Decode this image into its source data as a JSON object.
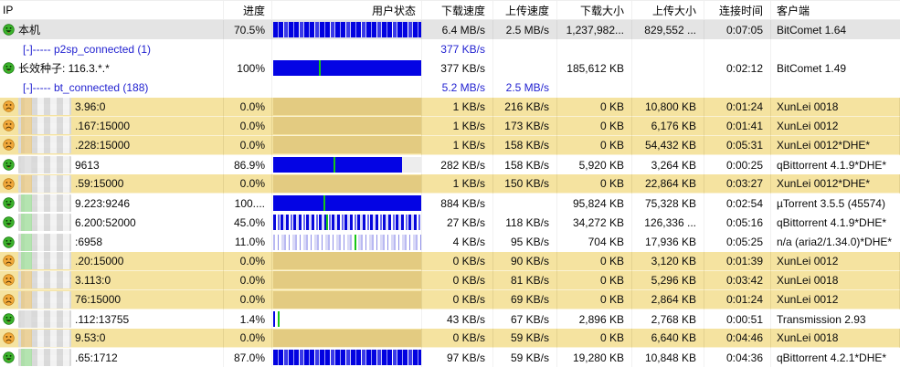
{
  "table": {
    "columns": [
      {
        "id": "ip",
        "label": "IP"
      },
      {
        "id": "progress",
        "label": "进度"
      },
      {
        "id": "status",
        "label": "用户状态"
      },
      {
        "id": "dl_speed",
        "label": "下载速度"
      },
      {
        "id": "ul_speed",
        "label": "上传速度",
        "sorted": "desc"
      },
      {
        "id": "dl_size",
        "label": "下载大小"
      },
      {
        "id": "ul_size",
        "label": "上传大小"
      },
      {
        "id": "conn_time",
        "label": "连接时间"
      },
      {
        "id": "client",
        "label": "客户端"
      }
    ],
    "rows": [
      {
        "kind": "local",
        "bg": "selected",
        "icon": "happy",
        "ip": "本机",
        "progress": "70.5%",
        "bar": {
          "style": "stripes",
          "density": "dense",
          "fill": 100
        },
        "dl_speed": "6.4 MB/s",
        "ul_speed": "2.5 MB/s",
        "dl_size": "1,237,982...",
        "ul_size": "829,552 ...",
        "conn_time": "0:07:05",
        "client": "BitComet 1.64"
      },
      {
        "kind": "group",
        "bg": "white",
        "ip": "[-]----- p2sp_connected (1)",
        "progress": "",
        "dl_speed": "377 KB/s",
        "ul_speed": "",
        "dl_size": "",
        "ul_size": "",
        "conn_time": "",
        "client": ""
      },
      {
        "kind": "peer",
        "bg": "white",
        "icon": "happy",
        "ip": "长效种子: 116.3.*.*",
        "progress": "100%",
        "bar": {
          "style": "solid",
          "fill": 100,
          "marker": 31
        },
        "dl_speed": "377 KB/s",
        "ul_speed": "",
        "dl_size": "185,612 KB",
        "ul_size": "",
        "conn_time": "0:02:12",
        "client": "BitComet 1.49"
      },
      {
        "kind": "group",
        "bg": "white",
        "ip": "[-]----- bt_connected (188)",
        "progress": "",
        "dl_speed": "5.2 MB/s",
        "ul_speed": "2.5 MB/s",
        "dl_size": "",
        "ul_size": "",
        "conn_time": "",
        "client": ""
      },
      {
        "kind": "peer",
        "bg": "yellow",
        "icon": "sad",
        "masked": true,
        "tint": "tan",
        "ip": "3.96:0",
        "progress": "0.0%",
        "bar": {
          "style": "tan"
        },
        "dl_speed": "1 KB/s",
        "ul_speed": "216 KB/s",
        "dl_size": "0 KB",
        "ul_size": "10,800 KB",
        "conn_time": "0:01:24",
        "client": "XunLei 0018"
      },
      {
        "kind": "peer",
        "bg": "yellow",
        "icon": "sad",
        "masked": true,
        "tint": "tan",
        "ip": ".167:15000",
        "progress": "0.0%",
        "bar": {
          "style": "tan"
        },
        "dl_speed": "1 KB/s",
        "ul_speed": "173 KB/s",
        "dl_size": "0 KB",
        "ul_size": "6,176 KB",
        "conn_time": "0:01:41",
        "client": "XunLei 0012"
      },
      {
        "kind": "peer",
        "bg": "yellow",
        "icon": "sad",
        "masked": true,
        "tint": "tan",
        "ip": ".228:15000",
        "progress": "0.0%",
        "bar": {
          "style": "tan"
        },
        "dl_speed": "1 KB/s",
        "ul_speed": "158 KB/s",
        "dl_size": "0 KB",
        "ul_size": "54,432 KB",
        "conn_time": "0:05:31",
        "client": "XunLei 0012*DHE*"
      },
      {
        "kind": "peer",
        "bg": "white",
        "icon": "happy",
        "masked": true,
        "tint": "gray",
        "ip": "9613",
        "progress": "86.9%",
        "bar": {
          "style": "solid",
          "fill": 87,
          "marker": 41,
          "rest": "#ededed"
        },
        "dl_speed": "282 KB/s",
        "ul_speed": "158 KB/s",
        "dl_size": "5,920 KB",
        "ul_size": "3,264 KB",
        "conn_time": "0:00:25",
        "client": "qBittorrent 4.1.9*DHE*"
      },
      {
        "kind": "peer",
        "bg": "yellow",
        "icon": "sad",
        "masked": true,
        "tint": "tan",
        "ip": ".59:15000",
        "progress": "0.0%",
        "bar": {
          "style": "tan"
        },
        "dl_speed": "1 KB/s",
        "ul_speed": "150 KB/s",
        "dl_size": "0 KB",
        "ul_size": "22,864 KB",
        "conn_time": "0:03:27",
        "client": "XunLei 0012*DHE*"
      },
      {
        "kind": "peer",
        "bg": "white",
        "icon": "happy",
        "masked": true,
        "tint": "green",
        "ip": "9.223:9246",
        "progress": "100....",
        "bar": {
          "style": "solid",
          "fill": 100,
          "marker": 34
        },
        "dl_speed": "884 KB/s",
        "ul_speed": "",
        "dl_size": "95,824 KB",
        "ul_size": "75,328 KB",
        "conn_time": "0:02:54",
        "client": "µTorrent 3.5.5 (45574)"
      },
      {
        "kind": "peer",
        "bg": "white",
        "icon": "happy",
        "masked": true,
        "tint": "green",
        "ip": "6.200:52000",
        "progress": "45.0%",
        "bar": {
          "style": "stripes",
          "density": "medium",
          "fill": 100,
          "marker": 36
        },
        "dl_speed": "27 KB/s",
        "ul_speed": "118 KB/s",
        "dl_size": "34,272 KB",
        "ul_size": "126,336 ...",
        "conn_time": "0:05:16",
        "client": "qBittorrent 4.1.9*DHE*"
      },
      {
        "kind": "peer",
        "bg": "white",
        "icon": "happy",
        "masked": true,
        "tint": "green",
        "ip": ":6958",
        "progress": "11.0%",
        "bar": {
          "style": "stripes",
          "density": "light",
          "fill": 100,
          "marker": 55
        },
        "dl_speed": "4 KB/s",
        "ul_speed": "95 KB/s",
        "dl_size": "704 KB",
        "ul_size": "17,936 KB",
        "conn_time": "0:05:25",
        "client": "n/a (aria2/1.34.0)*DHE*"
      },
      {
        "kind": "peer",
        "bg": "yellow",
        "icon": "sad",
        "masked": true,
        "tint": "green",
        "ip": ".20:15000",
        "progress": "0.0%",
        "bar": {
          "style": "tan"
        },
        "dl_speed": "0 KB/s",
        "ul_speed": "90 KB/s",
        "dl_size": "0 KB",
        "ul_size": "3,120 KB",
        "conn_time": "0:01:39",
        "client": "XunLei 0012"
      },
      {
        "kind": "peer",
        "bg": "yellow",
        "icon": "sad",
        "masked": true,
        "tint": "tan",
        "ip": "3.113:0",
        "progress": "0.0%",
        "bar": {
          "style": "tan"
        },
        "dl_speed": "0 KB/s",
        "ul_speed": "81 KB/s",
        "dl_size": "0 KB",
        "ul_size": "5,296 KB",
        "conn_time": "0:03:42",
        "client": "XunLei 0018"
      },
      {
        "kind": "peer",
        "bg": "yellow",
        "icon": "sad",
        "masked": true,
        "tint": "tan",
        "ip": "76:15000",
        "progress": "0.0%",
        "bar": {
          "style": "tan"
        },
        "dl_speed": "0 KB/s",
        "ul_speed": "69 KB/s",
        "dl_size": "0 KB",
        "ul_size": "2,864 KB",
        "conn_time": "0:01:24",
        "client": "XunLei 0012"
      },
      {
        "kind": "peer",
        "bg": "white",
        "icon": "happy",
        "masked": true,
        "tint": "gray",
        "ip": ".112:13755",
        "progress": "1.4%",
        "bar": {
          "style": "solid",
          "fill": 1.5,
          "marker": 3,
          "rest": "#ffffff"
        },
        "dl_speed": "43 KB/s",
        "ul_speed": "67 KB/s",
        "dl_size": "2,896 KB",
        "ul_size": "2,768 KB",
        "conn_time": "0:00:51",
        "client": "Transmission 2.93"
      },
      {
        "kind": "peer",
        "bg": "yellow",
        "icon": "sad",
        "masked": true,
        "tint": "tan",
        "ip": "9.53:0",
        "progress": "0.0%",
        "bar": {
          "style": "tan"
        },
        "dl_speed": "0 KB/s",
        "ul_speed": "59 KB/s",
        "dl_size": "0 KB",
        "ul_size": "6,640 KB",
        "conn_time": "0:04:46",
        "client": "XunLei 0018"
      },
      {
        "kind": "peer",
        "bg": "white",
        "icon": "happy",
        "masked": true,
        "tint": "green",
        "ip": ".65:1712",
        "progress": "87.0%",
        "bar": {
          "style": "stripes",
          "density": "dense",
          "fill": 100
        },
        "dl_speed": "97 KB/s",
        "ul_speed": "59 KB/s",
        "dl_size": "19,280 KB",
        "ul_size": "10,848 KB",
        "conn_time": "0:04:36",
        "client": "qBittorrent 4.2.1*DHE*"
      }
    ]
  },
  "icons": {
    "happy": "happy-peer-icon",
    "sad": "sad-peer-icon",
    "sort_caret": "ˇ"
  },
  "colors": {
    "row_yellow": "#f5e3a0",
    "row_selected": "#e4e4e4",
    "bar_blue": "#0404e4",
    "bar_tan": "#e3cb81",
    "bar_marker_green": "#17c617",
    "group_text_blue": "#1f1fd0"
  }
}
